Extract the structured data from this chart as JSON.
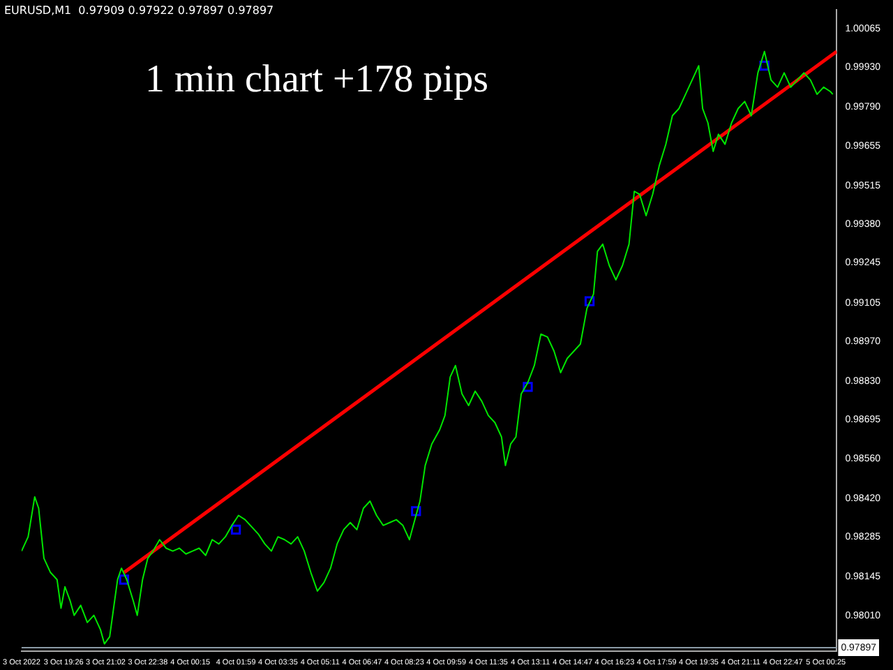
{
  "chart_data": {
    "type": "line",
    "title": "1 min chart +178 pips",
    "annotations": [
      "EURUSD,M1  0.97909 0.97922 0.97897 0.97897"
    ],
    "xlim": [
      "2022-10-03T17:50",
      "2022-10-05T00:50"
    ],
    "xticks": [
      {
        "value": "2022-10-03T17:50",
        "label": "3 Oct 2022"
      },
      {
        "value": "2022-10-03T19:26",
        "label": "3 Oct 19:26"
      },
      {
        "value": "2022-10-03T21:02",
        "label": "3 Oct 21:02"
      },
      {
        "value": "2022-10-03T22:38",
        "label": "3 Oct 22:38"
      },
      {
        "value": "2022-10-04T00:15",
        "label": "4 Oct 00:15"
      },
      {
        "value": "2022-10-04T01:59",
        "label": "4 Oct 01:59"
      },
      {
        "value": "2022-10-04T03:35",
        "label": "4 Oct 03:35"
      },
      {
        "value": "2022-10-04T05:11",
        "label": "4 Oct 05:11"
      },
      {
        "value": "2022-10-04T06:47",
        "label": "4 Oct 06:47"
      },
      {
        "value": "2022-10-04T08:23",
        "label": "4 Oct 08:23"
      },
      {
        "value": "2022-10-04T09:59",
        "label": "4 Oct 09:59"
      },
      {
        "value": "2022-10-04T11:35",
        "label": "4 Oct 11:35"
      },
      {
        "value": "2022-10-04T13:11",
        "label": "4 Oct 13:11"
      },
      {
        "value": "2022-10-04T14:47",
        "label": "4 Oct 14:47"
      },
      {
        "value": "2022-10-04T16:23",
        "label": "4 Oct 16:23"
      },
      {
        "value": "2022-10-04T17:59",
        "label": "4 Oct 17:59"
      },
      {
        "value": "2022-10-04T19:35",
        "label": "4 Oct 19:35"
      },
      {
        "value": "2022-10-04T21:11",
        "label": "4 Oct 21:11"
      },
      {
        "value": "2022-10-04T22:47",
        "label": "4 Oct 22:47"
      },
      {
        "value": "2022-10-05T00:25",
        "label": "5 Oct 00:25"
      }
    ],
    "ylim": [
      0.97885,
      1.0013
    ],
    "yticks": [
      {
        "value": 0.9801,
        "label": "0.98010"
      },
      {
        "value": 0.98145,
        "label": "0.98145"
      },
      {
        "value": 0.98285,
        "label": "0.98285"
      },
      {
        "value": 0.9842,
        "label": "0.98420"
      },
      {
        "value": 0.9856,
        "label": "0.98560"
      },
      {
        "value": 0.98695,
        "label": "0.98695"
      },
      {
        "value": 0.9883,
        "label": "0.98830"
      },
      {
        "value": 0.9897,
        "label": "0.98970"
      },
      {
        "value": 0.99105,
        "label": "0.99105"
      },
      {
        "value": 0.99245,
        "label": "0.99245"
      },
      {
        "value": 0.9938,
        "label": "0.99380"
      },
      {
        "value": 0.99515,
        "label": "0.99515"
      },
      {
        "value": 0.99655,
        "label": "0.99655"
      },
      {
        "value": 0.9979,
        "label": "0.99790"
      },
      {
        "value": 0.9993,
        "label": "0.99930"
      },
      {
        "value": 1.00065,
        "label": "1.00065"
      }
    ],
    "grid": false,
    "legend": false,
    "ref_lines": [
      {
        "axis": "y",
        "value": 0.97897,
        "label": "0.97897",
        "color": "#8a9aa6"
      }
    ],
    "series": [
      {
        "color": "#00e600",
        "marker": "none",
        "x": [
          "2022-10-03T17:50",
          "2022-10-03T18:05",
          "2022-10-03T18:20",
          "2022-10-03T18:29",
          "2022-10-03T18:41",
          "2022-10-03T18:56",
          "2022-10-03T19:11",
          "2022-10-03T19:20",
          "2022-10-03T19:29",
          "2022-10-03T19:41",
          "2022-10-03T19:50",
          "2022-10-03T20:05",
          "2022-10-03T20:20",
          "2022-10-03T20:35",
          "2022-10-03T20:50",
          "2022-10-03T20:59",
          "2022-10-03T21:11",
          "2022-10-03T21:20",
          "2022-10-03T21:29",
          "2022-10-03T21:38",
          "2022-10-03T21:50",
          "2022-10-03T22:05",
          "2022-10-03T22:14",
          "2022-10-03T22:26",
          "2022-10-03T22:38",
          "2022-10-03T22:50",
          "2022-10-03T23:05",
          "2022-10-03T23:20",
          "2022-10-03T23:35",
          "2022-10-03T23:50",
          "2022-10-04T00:05",
          "2022-10-04T00:20",
          "2022-10-04T00:35",
          "2022-10-04T00:50",
          "2022-10-04T01:05",
          "2022-10-04T01:20",
          "2022-10-04T01:35",
          "2022-10-04T01:50",
          "2022-10-04T02:05",
          "2022-10-04T02:20",
          "2022-10-04T02:35",
          "2022-10-04T02:50",
          "2022-10-04T03:05",
          "2022-10-04T03:20",
          "2022-10-04T03:35",
          "2022-10-04T03:50",
          "2022-10-04T04:05",
          "2022-10-04T04:20",
          "2022-10-04T04:35",
          "2022-10-04T04:50",
          "2022-10-04T05:05",
          "2022-10-04T05:20",
          "2022-10-04T05:35",
          "2022-10-04T05:50",
          "2022-10-04T06:05",
          "2022-10-04T06:20",
          "2022-10-04T06:35",
          "2022-10-04T06:50",
          "2022-10-04T07:05",
          "2022-10-04T07:20",
          "2022-10-04T07:35",
          "2022-10-04T07:50",
          "2022-10-04T08:05",
          "2022-10-04T08:20",
          "2022-10-04T08:35",
          "2022-10-04T08:50",
          "2022-10-04T08:59",
          "2022-10-04T09:11",
          "2022-10-04T09:26",
          "2022-10-04T09:44",
          "2022-10-04T09:56",
          "2022-10-04T10:08",
          "2022-10-04T10:20",
          "2022-10-04T10:35",
          "2022-10-04T10:50",
          "2022-10-04T11:05",
          "2022-10-04T11:20",
          "2022-10-04T11:35",
          "2022-10-04T11:50",
          "2022-10-04T12:05",
          "2022-10-04T12:14",
          "2022-10-04T12:26",
          "2022-10-04T12:38",
          "2022-10-04T12:50",
          "2022-10-04T13:05",
          "2022-10-04T13:20",
          "2022-10-04T13:35",
          "2022-10-04T13:50",
          "2022-10-04T14:05",
          "2022-10-04T14:20",
          "2022-10-04T14:35",
          "2022-10-04T14:50",
          "2022-10-04T15:05",
          "2022-10-04T15:20",
          "2022-10-04T15:35",
          "2022-10-04T15:44",
          "2022-10-04T15:56",
          "2022-10-04T16:11",
          "2022-10-04T16:26",
          "2022-10-04T16:41",
          "2022-10-04T16:56",
          "2022-10-04T17:08",
          "2022-10-04T17:20",
          "2022-10-04T17:35",
          "2022-10-04T17:50",
          "2022-10-04T18:05",
          "2022-10-04T18:20",
          "2022-10-04T18:35",
          "2022-10-04T18:50",
          "2022-10-04T19:05",
          "2022-10-04T19:20",
          "2022-10-04T19:35",
          "2022-10-04T19:44",
          "2022-10-04T19:56",
          "2022-10-04T20:08",
          "2022-10-04T20:20",
          "2022-10-04T20:35",
          "2022-10-04T20:50",
          "2022-10-04T21:05",
          "2022-10-04T21:20",
          "2022-10-04T21:35",
          "2022-10-04T21:50",
          "2022-10-04T22:05",
          "2022-10-04T22:20",
          "2022-10-04T22:35",
          "2022-10-04T22:50",
          "2022-10-04T23:05",
          "2022-10-04T23:20",
          "2022-10-04T23:35",
          "2022-10-04T23:50",
          "2022-10-05T00:05",
          "2022-10-05T00:20",
          "2022-10-05T00:35",
          "2022-10-05T00:41"
        ],
        "values": [
          0.98235,
          0.98285,
          0.98425,
          0.98385,
          0.9821,
          0.9816,
          0.98135,
          0.98035,
          0.9811,
          0.9806,
          0.9801,
          0.98045,
          0.97985,
          0.9801,
          0.9796,
          0.9791,
          0.97935,
          0.98035,
          0.98135,
          0.98175,
          0.98135,
          0.9806,
          0.9801,
          0.98135,
          0.9821,
          0.98235,
          0.98275,
          0.98245,
          0.98235,
          0.98245,
          0.98225,
          0.98235,
          0.98245,
          0.9822,
          0.98275,
          0.9826,
          0.98285,
          0.98325,
          0.9836,
          0.98345,
          0.9832,
          0.98295,
          0.9826,
          0.98235,
          0.98285,
          0.98275,
          0.9826,
          0.98285,
          0.98235,
          0.9816,
          0.98095,
          0.98125,
          0.98175,
          0.9826,
          0.9831,
          0.98335,
          0.9831,
          0.98385,
          0.9841,
          0.9836,
          0.98325,
          0.98335,
          0.98345,
          0.98325,
          0.98275,
          0.9836,
          0.9841,
          0.98535,
          0.9861,
          0.9866,
          0.9871,
          0.98845,
          0.98885,
          0.98785,
          0.98745,
          0.98795,
          0.9876,
          0.9871,
          0.98685,
          0.98635,
          0.98535,
          0.9861,
          0.98635,
          0.98785,
          0.98825,
          0.98885,
          0.98995,
          0.98985,
          0.98935,
          0.9886,
          0.9891,
          0.98935,
          0.9896,
          0.99085,
          0.99135,
          0.99285,
          0.9931,
          0.99235,
          0.99185,
          0.99235,
          0.9931,
          0.99495,
          0.99485,
          0.9941,
          0.99485,
          0.99585,
          0.9966,
          0.9976,
          0.99785,
          0.99835,
          0.99885,
          0.99935,
          0.99785,
          0.99735,
          0.99635,
          0.99695,
          0.9966,
          0.99735,
          0.99785,
          0.9981,
          0.9976,
          0.9991,
          0.99985,
          0.99885,
          0.9986,
          0.9991,
          0.9986,
          0.99885,
          0.9991,
          0.99885,
          0.99835,
          0.9986,
          0.99845,
          0.99835
        ]
      },
      {
        "type": "line",
        "color": "#ff0000",
        "marker": "none",
        "x": [
          "2022-10-03T21:44",
          "2022-10-05T00:50"
        ],
        "values": [
          0.9816,
          0.99985
        ]
      },
      {
        "type": "scatter",
        "color": "#0000ff",
        "marker": "square",
        "x": [
          "2022-10-03T21:44",
          "2022-10-04T01:59",
          "2022-10-04T08:50",
          "2022-10-04T13:05",
          "2022-10-04T15:26",
          "2022-10-04T22:05"
        ],
        "values": [
          0.98135,
          0.9831,
          0.98375,
          0.9881,
          0.9911,
          0.99935
        ]
      }
    ]
  }
}
